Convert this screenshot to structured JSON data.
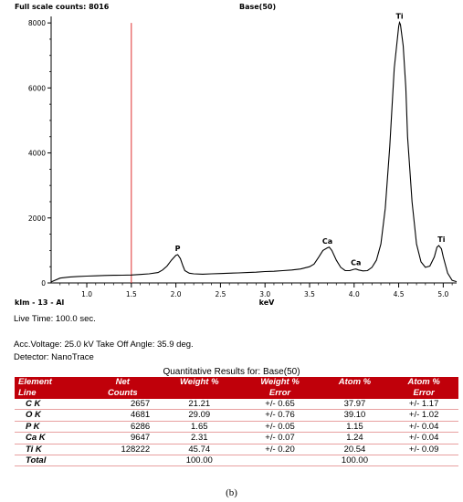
{
  "header": {
    "full_scale": "Full scale counts: 8016",
    "title": "Base(50)"
  },
  "chart_data": {
    "type": "line",
    "title": "Base(50)",
    "xlabel": "keV",
    "ylabel": "",
    "sample_label": "klm - 13 - Al",
    "xlim": [
      0.6,
      5.15
    ],
    "ylim": [
      0,
      8200
    ],
    "yticks": [
      0,
      2000,
      4000,
      6000,
      8000
    ],
    "xticks": [
      1.0,
      1.5,
      2.0,
      2.5,
      3.0,
      3.5,
      4.0,
      4.5,
      5.0
    ],
    "xtick_labels": [
      "1.0",
      "1.5",
      "2.0",
      "2.5",
      "3.0",
      "3.5",
      "4.0",
      "4.5",
      "5.0"
    ],
    "ytick_labels": [
      "0",
      "2000",
      "4000",
      "6000",
      "8000"
    ],
    "marker_x": 1.5,
    "line_color": "#000000",
    "marker_color": "#e03030",
    "series": [
      {
        "x": [
          0.6,
          0.7,
          0.8,
          0.9,
          1.0,
          1.1,
          1.2,
          1.3,
          1.4,
          1.5,
          1.6,
          1.7,
          1.8,
          1.85,
          1.9,
          1.95,
          2.0,
          2.02,
          2.05,
          2.08,
          2.1,
          2.15,
          2.2,
          2.3,
          2.4,
          2.5,
          2.6,
          2.7,
          2.8,
          2.9,
          3.0,
          3.1,
          3.2,
          3.3,
          3.4,
          3.5,
          3.55,
          3.6,
          3.65,
          3.7,
          3.72,
          3.75,
          3.8,
          3.85,
          3.9,
          3.95,
          4.0,
          4.02,
          4.05,
          4.1,
          4.15,
          4.2,
          4.25,
          4.3,
          4.35,
          4.4,
          4.45,
          4.5,
          4.51,
          4.52,
          4.55,
          4.58,
          4.6,
          4.65,
          4.7,
          4.75,
          4.8,
          4.85,
          4.9,
          4.93,
          4.95,
          4.98,
          5.0,
          5.05,
          5.1,
          5.15
        ],
        "y": [
          30,
          150,
          180,
          200,
          210,
          220,
          230,
          235,
          240,
          245,
          260,
          280,
          320,
          400,
          520,
          700,
          850,
          870,
          750,
          520,
          380,
          300,
          280,
          270,
          280,
          290,
          300,
          310,
          320,
          330,
          350,
          360,
          380,
          400,
          430,
          500,
          580,
          780,
          1000,
          1080,
          1100,
          1000,
          700,
          480,
          380,
          380,
          420,
          430,
          400,
          370,
          380,
          480,
          700,
          1200,
          2300,
          4200,
          6600,
          7900,
          8016,
          7950,
          7300,
          6000,
          4500,
          2500,
          1200,
          650,
          480,
          520,
          800,
          1100,
          1150,
          1050,
          800,
          300,
          80,
          40
        ]
      }
    ],
    "peak_labels": [
      {
        "text": "P",
        "x": 2.02,
        "y": 870
      },
      {
        "text": "Ca",
        "x": 3.7,
        "y": 1100
      },
      {
        "text": "Ca",
        "x": 4.02,
        "y": 430
      },
      {
        "text": "Ti",
        "x": 4.51,
        "y": 8016
      },
      {
        "text": "Ti",
        "x": 4.98,
        "y": 1150
      }
    ]
  },
  "info": {
    "live_time": "Live Time: 100.0 sec.",
    "acc_voltage": "Acc.Voltage: 25.0 kV  Take Off Angle: 35.9 deg.",
    "detector": "Detector: NanoTrace"
  },
  "results": {
    "title": "Quantitative Results for: Base(50)",
    "header_color": "#c0000a",
    "columns": [
      {
        "line1": "Element",
        "line2": "Line"
      },
      {
        "line1": "Net",
        "line2": "Counts"
      },
      {
        "line1": "Weight %",
        "line2": ""
      },
      {
        "line1": "Weight %",
        "line2": "Error"
      },
      {
        "line1": "Atom %",
        "line2": ""
      },
      {
        "line1": "Atom %",
        "line2": "Error"
      }
    ],
    "rows": [
      [
        "C K",
        "2657",
        "21.21",
        "+/- 0.65",
        "37.97",
        "+/- 1.17"
      ],
      [
        "O K",
        "4681",
        "29.09",
        "+/- 0.76",
        "39.10",
        "+/- 1.02"
      ],
      [
        "P K",
        "6286",
        "1.65",
        "+/- 0.05",
        "1.15",
        "+/- 0.04"
      ],
      [
        "Ca K",
        "9647",
        "2.31",
        "+/- 0.07",
        "1.24",
        "+/- 0.04"
      ],
      [
        "Ti K",
        "128222",
        "45.74",
        "+/- 0.20",
        "20.54",
        "+/- 0.09"
      ],
      [
        "Total",
        "",
        "100.00",
        "",
        "100.00",
        ""
      ]
    ]
  },
  "caption": "(b)"
}
